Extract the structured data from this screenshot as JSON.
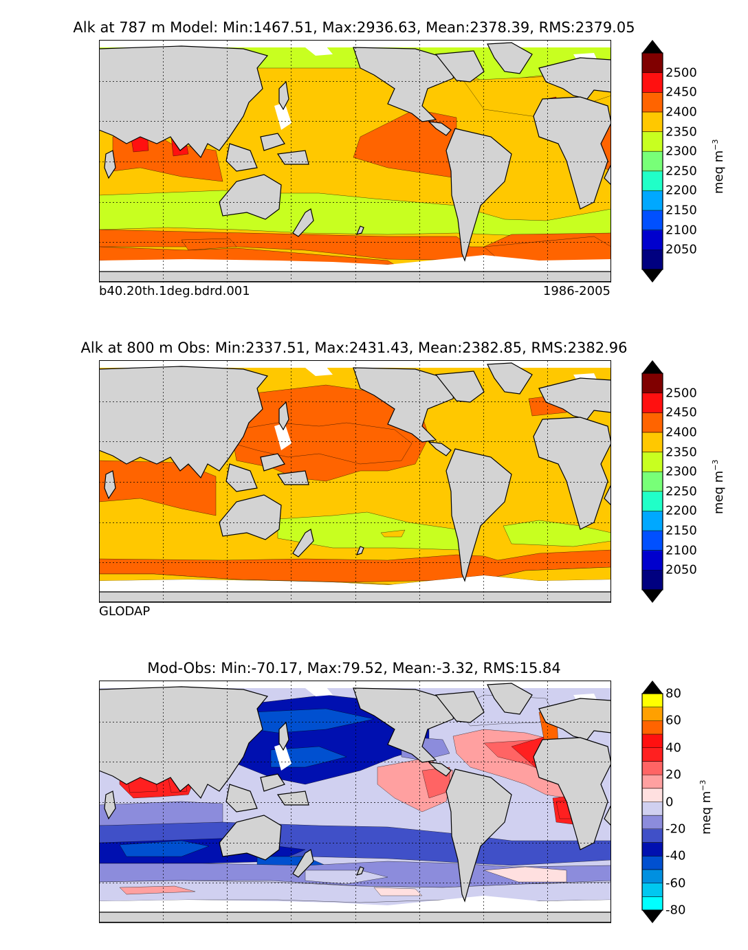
{
  "chart_data": [
    {
      "type": "heatmap",
      "title": "Alk at 787 m Model: Min:1467.51, Max:2936.63, Mean:2378.39, RMS:2379.05",
      "footer_left": "b40.20th.1deg.bdrd.001",
      "footer_right": "1986-2005",
      "colorbar": {
        "label": "meq m",
        "label_exp": "−3",
        "levels": [
          2000,
          2050,
          2100,
          2150,
          2200,
          2250,
          2300,
          2350,
          2400,
          2450,
          2500,
          2550
        ],
        "ticks": [
          "2050",
          "2100",
          "2150",
          "2200",
          "2250",
          "2300",
          "2350",
          "2400",
          "2450",
          "2500"
        ],
        "colors": [
          "#000080",
          "#0000cd",
          "#0050ff",
          "#00a8ff",
          "#20ffc8",
          "#78ff78",
          "#c8ff20",
          "#ffc800",
          "#ff6400",
          "#ff1010",
          "#800000"
        ],
        "under_color": "#000000",
        "over_color": "#000000"
      },
      "background_value": 2375
    },
    {
      "type": "heatmap",
      "title": "Alk at 800 m Obs: Min:2337.51, Max:2431.43, Mean:2382.85, RMS:2382.96",
      "footer_left": "GLODAP",
      "footer_right": "",
      "colorbar": {
        "label": "meq m",
        "label_exp": "−3",
        "levels": [
          2000,
          2050,
          2100,
          2150,
          2200,
          2250,
          2300,
          2350,
          2400,
          2450,
          2500,
          2550
        ],
        "ticks": [
          "2050",
          "2100",
          "2150",
          "2200",
          "2250",
          "2300",
          "2350",
          "2400",
          "2450",
          "2500"
        ],
        "colors": [
          "#000080",
          "#0000cd",
          "#0050ff",
          "#00a8ff",
          "#20ffc8",
          "#78ff78",
          "#c8ff20",
          "#ffc800",
          "#ff6400",
          "#ff1010",
          "#800000"
        ],
        "under_color": "#000000",
        "over_color": "#000000"
      },
      "background_value": 2375
    },
    {
      "type": "heatmap",
      "title": "Mod-Obs: Min:-70.17, Max:79.52, Mean:-3.32, RMS:15.84",
      "footer_left": "",
      "footer_right": "",
      "colorbar": {
        "label": "meq m",
        "label_exp": "−3",
        "levels": [
          -80,
          -70,
          -60,
          -50,
          -40,
          -30,
          -20,
          -10,
          0,
          10,
          20,
          30,
          40,
          50,
          60,
          70,
          80
        ],
        "ticks": [
          "80",
          "60",
          "40",
          "20",
          "0",
          "-20",
          "-40",
          "-60",
          "-80"
        ],
        "colors": [
          "#00ffff",
          "#00c8f0",
          "#0090e0",
          "#0050d0",
          "#0010b0",
          "#4050c8",
          "#8c8cdc",
          "#d0d0f0",
          "#ffe0e0",
          "#ffa0a0",
          "#ff6464",
          "#ff2020",
          "#ff1010",
          "#ff6400",
          "#ffa000",
          "#ffff00"
        ],
        "under_color": "#000000",
        "over_color": "#000000"
      },
      "background_value": -5
    }
  ]
}
